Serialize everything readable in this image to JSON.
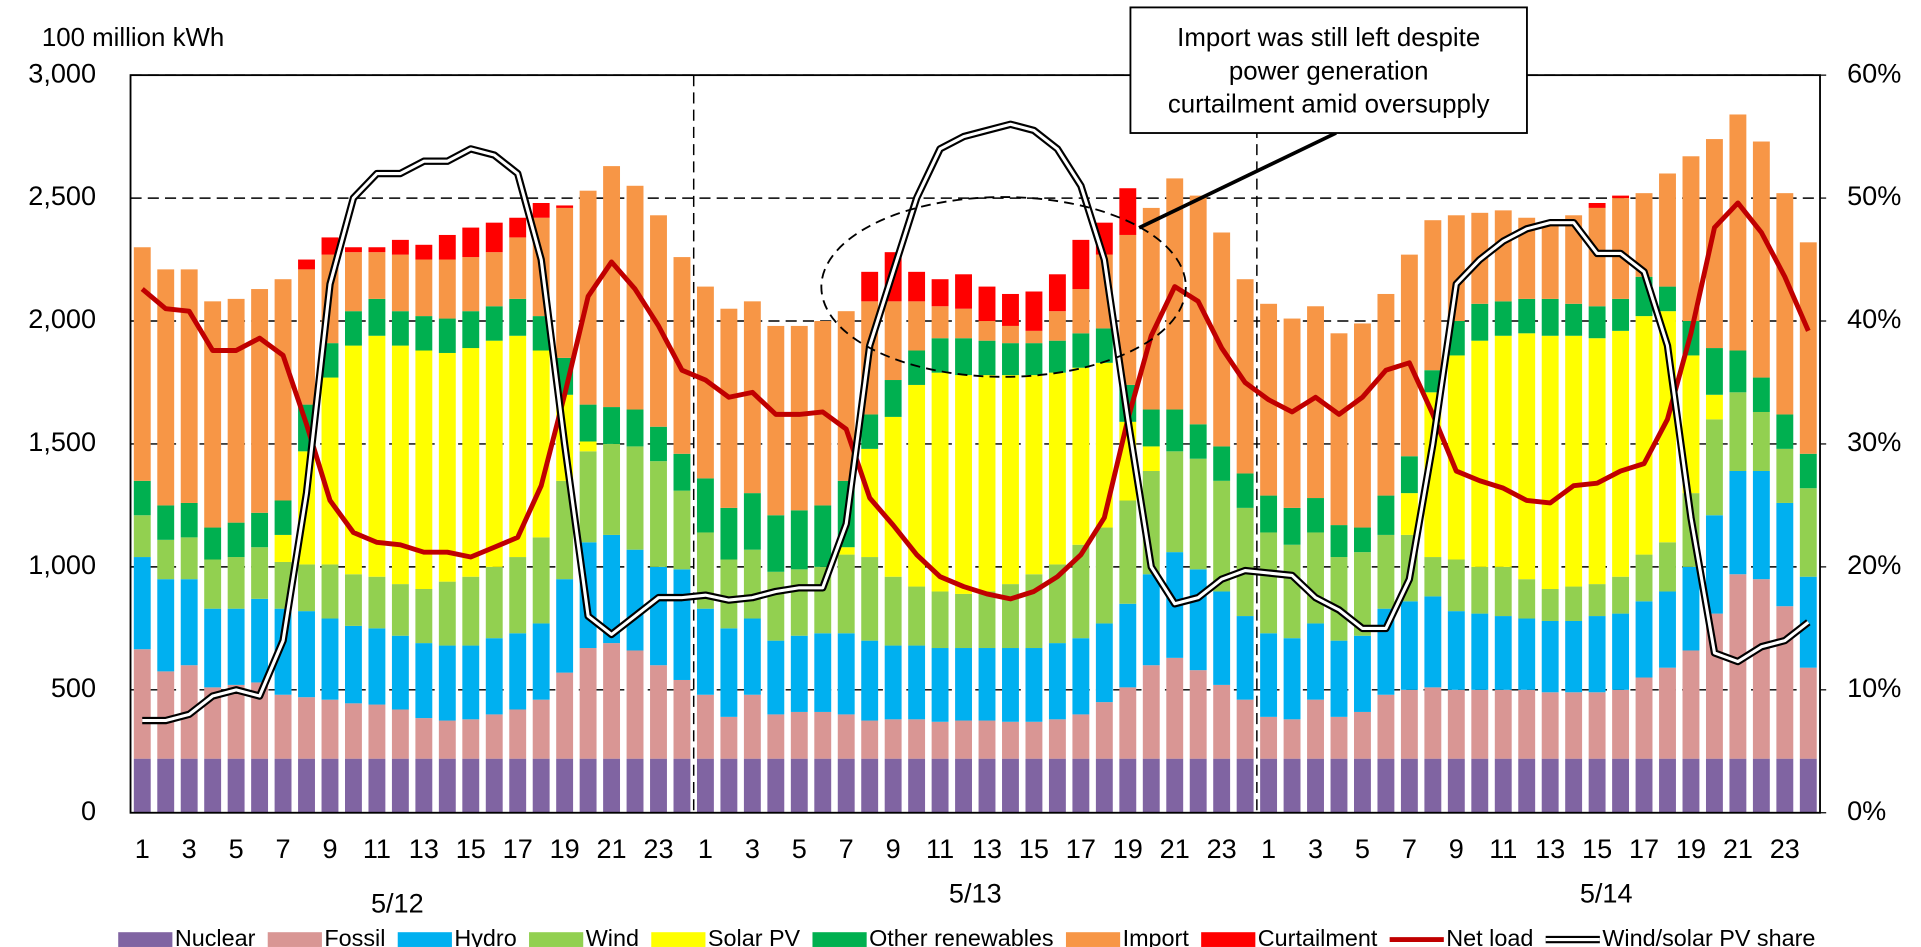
{
  "chart_data": {
    "type": "bar",
    "stacked": true,
    "y_label": "100 million kWh",
    "annotation": {
      "lines": [
        "Import was still left despite",
        "power generation",
        "curtailment amid oversupply"
      ]
    },
    "groups": [
      "5/12",
      "5/13",
      "5/14"
    ],
    "categories": [
      "1",
      null,
      "3",
      null,
      "5",
      null,
      "7",
      null,
      "9",
      null,
      "11",
      null,
      "13",
      null,
      "15",
      null,
      "17",
      null,
      "19",
      null,
      "21",
      null,
      "23",
      null,
      "1",
      null,
      "3",
      null,
      "5",
      null,
      "7",
      null,
      "9",
      null,
      "11",
      null,
      "13",
      null,
      "15",
      null,
      "17",
      null,
      "19",
      null,
      "21",
      null,
      "23",
      null,
      "1",
      null,
      "3",
      null,
      "5",
      null,
      "7",
      null,
      "9",
      null,
      "11",
      null,
      "13",
      null,
      "15",
      null,
      "17",
      null,
      "19",
      null,
      "21",
      null,
      "23",
      null
    ],
    "ylim": [
      0,
      3000
    ],
    "yticks": [
      0,
      {
        "value": 500,
        "label": "500"
      },
      {
        "value": 1000,
        "label": "1,000"
      },
      {
        "value": 1500,
        "label": "1,500"
      },
      {
        "value": 2000,
        "label": "2,000"
      },
      {
        "value": 2500,
        "label": "2,500"
      },
      {
        "value": 3000,
        "label": "3,000"
      }
    ],
    "y2lim": [
      0,
      60
    ],
    "y2ticks": [
      {
        "value": 0,
        "label": "0%"
      },
      {
        "value": 10,
        "label": "10%"
      },
      {
        "value": 20,
        "label": "20%"
      },
      {
        "value": 30,
        "label": "30%"
      },
      {
        "value": 40,
        "label": "40%"
      },
      {
        "value": 50,
        "label": "50%"
      },
      {
        "value": 60,
        "label": "60%"
      }
    ],
    "grid": true,
    "legend": "bottom",
    "series": [
      {
        "name": "Nuclear",
        "color": "#8064a2",
        "values": [
          220,
          220,
          220,
          220,
          220,
          220,
          220,
          220,
          220,
          220,
          220,
          220,
          220,
          220,
          220,
          220,
          220,
          220,
          220,
          220,
          220,
          220,
          220,
          220,
          220,
          220,
          220,
          220,
          220,
          220,
          220,
          220,
          220,
          220,
          220,
          220,
          220,
          220,
          220,
          220,
          220,
          220,
          220,
          220,
          220,
          220,
          220,
          220,
          220,
          220,
          220,
          220,
          220,
          220,
          220,
          220,
          220,
          220,
          220,
          220,
          220,
          220,
          220,
          220,
          220,
          220,
          220,
          220,
          220,
          220,
          220,
          220
        ]
      },
      {
        "name": "Fossil",
        "color": "#d99694",
        "values": [
          445,
          355,
          380,
          290,
          300,
          310,
          260,
          250,
          240,
          225,
          220,
          200,
          165,
          155,
          160,
          180,
          200,
          240,
          350,
          450,
          470,
          440,
          380,
          320,
          260,
          170,
          260,
          180,
          190,
          190,
          180,
          155,
          160,
          160,
          150,
          155,
          155,
          150,
          150,
          160,
          180,
          230,
          290,
          380,
          410,
          360,
          300,
          240,
          170,
          160,
          240,
          170,
          190,
          260,
          280,
          290,
          280,
          280,
          280,
          280,
          270,
          270,
          270,
          280,
          330,
          370,
          440,
          590,
          750,
          730,
          620,
          370
        ]
      },
      {
        "name": "Hydro",
        "color": "#00b0f0",
        "values": [
          375,
          375,
          350,
          320,
          310,
          340,
          350,
          350,
          330,
          315,
          310,
          300,
          305,
          305,
          300,
          310,
          310,
          310,
          380,
          430,
          440,
          410,
          400,
          450,
          350,
          360,
          310,
          300,
          310,
          320,
          330,
          325,
          300,
          300,
          300,
          295,
          295,
          300,
          300,
          310,
          310,
          320,
          340,
          370,
          430,
          410,
          380,
          340,
          340,
          330,
          310,
          310,
          310,
          350,
          360,
          370,
          320,
          310,
          300,
          290,
          290,
          290,
          310,
          310,
          310,
          310,
          340,
          400,
          420,
          440,
          420,
          370
        ]
      },
      {
        "name": "Wind",
        "color": "#92d050",
        "values": [
          170,
          160,
          170,
          200,
          210,
          210,
          190,
          190,
          220,
          210,
          210,
          210,
          220,
          260,
          280,
          290,
          310,
          350,
          400,
          370,
          370,
          420,
          430,
          320,
          310,
          280,
          280,
          280,
          270,
          270,
          320,
          340,
          280,
          240,
          230,
          220,
          230,
          260,
          300,
          320,
          380,
          390,
          420,
          420,
          410,
          450,
          450,
          440,
          410,
          380,
          370,
          340,
          340,
          300,
          270,
          160,
          210,
          190,
          200,
          160,
          130,
          140,
          130,
          150,
          190,
          200,
          300,
          390,
          320,
          240,
          220,
          360
        ]
      },
      {
        "name": "Solar PV",
        "color": "#ffff00",
        "values": [
          0,
          0,
          0,
          0,
          0,
          0,
          110,
          460,
          760,
          930,
          980,
          970,
          970,
          930,
          930,
          920,
          900,
          760,
          350,
          40,
          0,
          0,
          0,
          0,
          0,
          0,
          0,
          0,
          0,
          0,
          30,
          440,
          650,
          820,
          890,
          890,
          880,
          850,
          810,
          780,
          720,
          670,
          320,
          100,
          0,
          0,
          0,
          0,
          0,
          0,
          0,
          0,
          0,
          0,
          170,
          670,
          830,
          920,
          940,
          1000,
          1030,
          1020,
          1000,
          1000,
          970,
          940,
          560,
          100,
          0,
          0,
          0,
          0
        ]
      },
      {
        "name": "Other renewables",
        "color": "#00b050",
        "values": [
          140,
          140,
          140,
          130,
          140,
          140,
          140,
          190,
          140,
          140,
          150,
          140,
          140,
          140,
          150,
          140,
          150,
          140,
          150,
          150,
          150,
          150,
          140,
          150,
          220,
          210,
          230,
          230,
          240,
          250,
          270,
          140,
          150,
          140,
          140,
          150,
          140,
          130,
          130,
          130,
          140,
          140,
          150,
          150,
          170,
          140,
          140,
          140,
          150,
          150,
          140,
          130,
          100,
          160,
          150,
          90,
          140,
          150,
          140,
          140,
          150,
          130,
          130,
          130,
          160,
          100,
          140,
          190,
          170,
          140,
          140,
          140
        ]
      },
      {
        "name": "Import",
        "color": "#f79646",
        "values": [
          950,
          960,
          950,
          920,
          910,
          910,
          900,
          550,
          360,
          240,
          190,
          230,
          230,
          240,
          220,
          220,
          250,
          400,
          610,
          870,
          980,
          910,
          860,
          800,
          780,
          810,
          780,
          770,
          750,
          750,
          690,
          460,
          320,
          200,
          130,
          120,
          80,
          70,
          50,
          120,
          180,
          300,
          610,
          820,
          940,
          930,
          870,
          790,
          780,
          770,
          780,
          780,
          830,
          820,
          820,
          610,
          430,
          370,
          370,
          330,
          310,
          360,
          400,
          410,
          340,
          460,
          670,
          850,
          960,
          960,
          900,
          860
        ]
      },
      {
        "name": "Curtailment",
        "color": "#ff0000",
        "values": [
          0,
          0,
          0,
          0,
          0,
          0,
          0,
          40,
          70,
          20,
          20,
          60,
          60,
          100,
          120,
          120,
          80,
          60,
          10,
          0,
          0,
          0,
          0,
          0,
          0,
          0,
          0,
          0,
          0,
          0,
          0,
          120,
          200,
          120,
          110,
          140,
          140,
          130,
          160,
          150,
          200,
          130,
          190,
          0,
          0,
          0,
          0,
          0,
          0,
          0,
          0,
          0,
          0,
          0,
          0,
          0,
          0,
          0,
          0,
          0,
          0,
          0,
          20,
          10,
          0,
          0,
          0,
          0,
          0,
          0,
          0,
          0
        ]
      },
      {
        "name": "Net load",
        "type": "line",
        "color": "#c00000",
        "values": [
          2130,
          2050,
          2040,
          1880,
          1880,
          1930,
          1860,
          1580,
          1270,
          1140,
          1100,
          1090,
          1060,
          1060,
          1040,
          1080,
          1120,
          1330,
          1700,
          2100,
          2240,
          2130,
          1980,
          1800,
          1760,
          1690,
          1710,
          1620,
          1620,
          1630,
          1560,
          1280,
          1170,
          1050,
          960,
          920,
          890,
          870,
          900,
          960,
          1050,
          1200,
          1600,
          1940,
          2140,
          2080,
          1890,
          1750,
          1680,
          1630,
          1690,
          1620,
          1690,
          1800,
          1830,
          1620,
          1390,
          1350,
          1320,
          1270,
          1260,
          1330,
          1340,
          1390,
          1420,
          1600,
          1950,
          2380,
          2480,
          2360,
          2180,
          1960
        ]
      },
      {
        "name": "Wind/solar PV share",
        "type": "line",
        "axis": "y2",
        "line_style": "double",
        "color": "#000000",
        "values": [
          7.5,
          7.5,
          8,
          9.5,
          10,
          9.5,
          14,
          26,
          43,
          50,
          52,
          52,
          53,
          53,
          54,
          53.5,
          52,
          45,
          30,
          16,
          14.5,
          16,
          17.5,
          17.5,
          17.7,
          17.3,
          17.5,
          18,
          18.3,
          18.3,
          23.5,
          38,
          44,
          50,
          54,
          55,
          55.5,
          56,
          55.5,
          54,
          51,
          45,
          32,
          20,
          17,
          17.5,
          19,
          19.7,
          19.5,
          19.3,
          17.5,
          16.5,
          15,
          15,
          19,
          30,
          43,
          45,
          46.5,
          47.5,
          48,
          48,
          45.5,
          45.5,
          44,
          38,
          24,
          13,
          12.3,
          13.5,
          14,
          15.5
        ]
      }
    ]
  }
}
